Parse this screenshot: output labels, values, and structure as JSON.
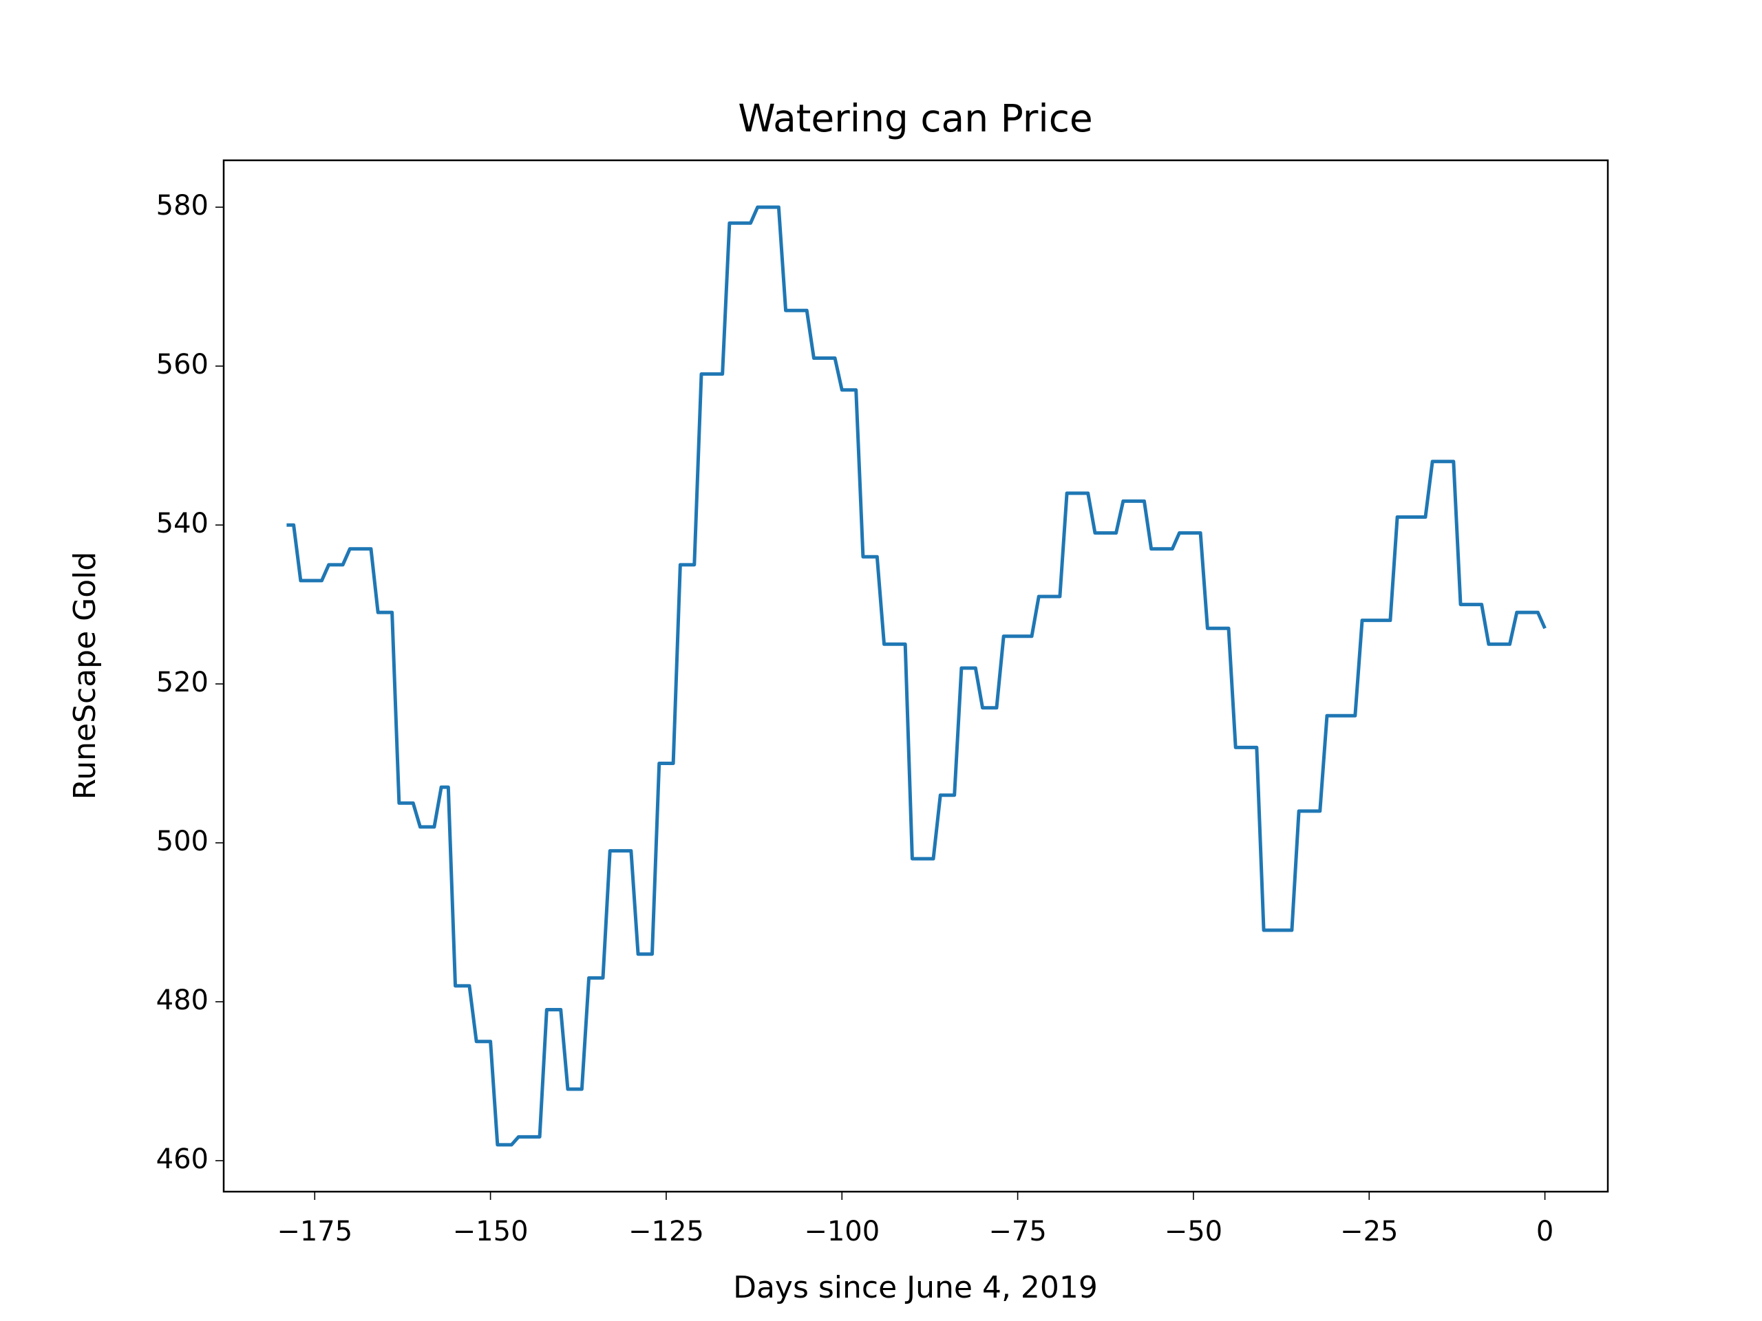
{
  "chart_data": {
    "type": "line",
    "title": "Watering can Price",
    "x_label": "Days since June 4, 2019",
    "y_label": "RuneScape Gold",
    "x": [
      -179,
      -178,
      -177,
      -176,
      -175,
      -174,
      -173,
      -172,
      -171,
      -170,
      -169,
      -168,
      -167,
      -166,
      -165,
      -164,
      -163,
      -162,
      -161,
      -160,
      -159,
      -158,
      -157,
      -156,
      -155,
      -154,
      -153,
      -152,
      -151,
      -150,
      -149,
      -148,
      -147,
      -146,
      -145,
      -144,
      -143,
      -142,
      -141,
      -140,
      -139,
      -138,
      -137,
      -136,
      -135,
      -134,
      -133,
      -132,
      -131,
      -130,
      -129,
      -128,
      -127,
      -126,
      -125,
      -124,
      -123,
      -122,
      -121,
      -120,
      -119,
      -118,
      -117,
      -116,
      -115,
      -114,
      -113,
      -112,
      -111,
      -110,
      -109,
      -108,
      -107,
      -106,
      -105,
      -104,
      -103,
      -102,
      -101,
      -100,
      -99,
      -98,
      -97,
      -96,
      -95,
      -94,
      -93,
      -92,
      -91,
      -90,
      -89,
      -88,
      -87,
      -86,
      -85,
      -84,
      -83,
      -82,
      -81,
      -80,
      -79,
      -78,
      -77,
      -76,
      -75,
      -74,
      -73,
      -72,
      -71,
      -70,
      -69,
      -68,
      -67,
      -66,
      -65,
      -64,
      -63,
      -62,
      -61,
      -60,
      -59,
      -58,
      -57,
      -56,
      -55,
      -54,
      -53,
      -52,
      -51,
      -50,
      -49,
      -48,
      -47,
      -46,
      -45,
      -44,
      -43,
      -42,
      -41,
      -40,
      -39,
      -38,
      -37,
      -36,
      -35,
      -34,
      -33,
      -32,
      -31,
      -30,
      -29,
      -28,
      -27,
      -26,
      -25,
      -24,
      -23,
      -22,
      -21,
      -20,
      -19,
      -18,
      -17,
      -16,
      -15,
      -14,
      -13,
      -12,
      -11,
      -10,
      -9,
      -8,
      -7,
      -6,
      -5,
      -4,
      -3,
      -2,
      -1,
      0
    ],
    "series": [
      {
        "color": "#1f77b4",
        "values": [
          540,
          540,
          533,
          533,
          533,
          533,
          535,
          535,
          535,
          537,
          537,
          537,
          537,
          529,
          529,
          529,
          505,
          505,
          505,
          502,
          502,
          502,
          507,
          507,
          482,
          482,
          482,
          475,
          475,
          475,
          462,
          462,
          462,
          463,
          463,
          463,
          463,
          479,
          479,
          479,
          469,
          469,
          469,
          483,
          483,
          483,
          499,
          499,
          499,
          499,
          486,
          486,
          486,
          510,
          510,
          510,
          535,
          535,
          535,
          559,
          559,
          559,
          559,
          578,
          578,
          578,
          578,
          580,
          580,
          580,
          580,
          567,
          567,
          567,
          567,
          561,
          561,
          561,
          561,
          557,
          557,
          557,
          536,
          536,
          536,
          525,
          525,
          525,
          525,
          498,
          498,
          498,
          498,
          506,
          506,
          506,
          522,
          522,
          522,
          517,
          517,
          517,
          526,
          526,
          526,
          526,
          526,
          531,
          531,
          531,
          531,
          544,
          544,
          544,
          544,
          539,
          539,
          539,
          539,
          543,
          543,
          543,
          543,
          537,
          537,
          537,
          537,
          539,
          539,
          539,
          539,
          527,
          527,
          527,
          527,
          512,
          512,
          512,
          512,
          489,
          489,
          489,
          489,
          489,
          504,
          504,
          504,
          504,
          516,
          516,
          516,
          516,
          516,
          528,
          528,
          528,
          528,
          528,
          541,
          541,
          541,
          541,
          541,
          548,
          548,
          548,
          548,
          530,
          530,
          530,
          530,
          525,
          525,
          525,
          525,
          529,
          529,
          529,
          529,
          527
        ]
      }
    ],
    "xlim": [
      -187.95,
      8.95
    ],
    "ylim": [
      456.1,
      585.9
    ],
    "xticks": [
      {
        "value": -175,
        "label": "−175"
      },
      {
        "value": -150,
        "label": "−150"
      },
      {
        "value": -125,
        "label": "−125"
      },
      {
        "value": -100,
        "label": "−100"
      },
      {
        "value": -75,
        "label": "−75"
      },
      {
        "value": -50,
        "label": "−50"
      },
      {
        "value": -25,
        "label": "−25"
      },
      0
    ],
    "yticks": [
      460,
      480,
      500,
      520,
      540,
      560,
      580
    ]
  }
}
